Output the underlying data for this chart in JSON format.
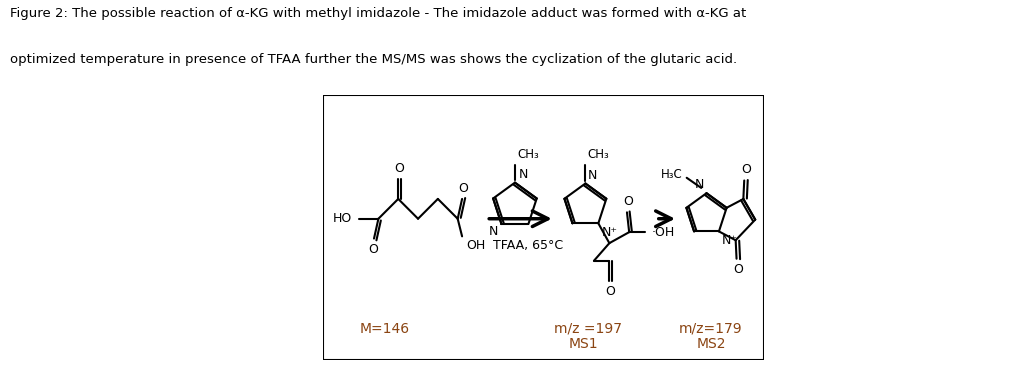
{
  "caption1": "Figure 2: The possible reaction of α-KG with methyl imidazole - The imidazole adduct was formed with α-KG at",
  "caption2": "optimized temperature in presence of TFAA further the MS/MS was shows the cyclization of the glutaric acid.",
  "label_m146": "M=146",
  "label_mz197": "m/z =197",
  "label_ms1": "MS1",
  "label_mz179": "m/z=179",
  "label_ms2": "MS2",
  "label_tfaa": "TFAA, 65°C",
  "label_ch3_1": "CH₃",
  "label_ch3_2": "CH₃",
  "label_h3c": "H₃C",
  "label_ho": "HO",
  "label_oh1": "OH",
  "label_oh2": "·OH",
  "label_np": "N⁺",
  "tc": "#000000",
  "bc": "#8B4513",
  "fig_w": 10.16,
  "fig_h": 3.67
}
